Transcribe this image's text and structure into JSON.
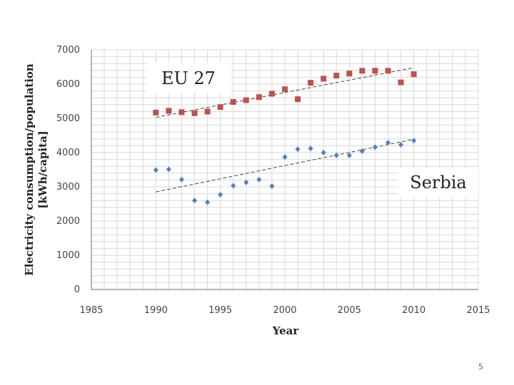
{
  "chart_data": {
    "type": "scatter",
    "title": "",
    "xlabel": "Year",
    "ylabel_line1": "Electricity consumption/population",
    "ylabel_line2": "[kWh/capita]",
    "xlim": [
      1985,
      2015
    ],
    "ylim": [
      0,
      7000
    ],
    "x_ticks": [
      1985,
      1990,
      1995,
      2000,
      2005,
      2010,
      2015
    ],
    "y_ticks": [
      0,
      1000,
      2000,
      3000,
      4000,
      5000,
      6000,
      7000
    ],
    "x_minor_step": 1,
    "y_minor_step": 200,
    "grid": true,
    "series": [
      {
        "name": "EU 27",
        "marker": "square",
        "color": "#c0504d",
        "x": [
          1990,
          1991,
          1992,
          1993,
          1994,
          1995,
          1996,
          1997,
          1998,
          1999,
          2000,
          2001,
          2002,
          2003,
          2004,
          2005,
          2006,
          2007,
          2008,
          2009,
          2010
        ],
        "y": [
          5170,
          5220,
          5180,
          5150,
          5200,
          5330,
          5480,
          5530,
          5620,
          5720,
          5850,
          5560,
          6040,
          6160,
          6250,
          6310,
          6390,
          6390,
          6390,
          6050,
          6290
        ],
        "trendline": {
          "x": [
            1990,
            2010
          ],
          "y": [
            5030,
            6480
          ]
        }
      },
      {
        "name": "Serbia",
        "marker": "diamond",
        "color": "#4f81bd",
        "x": [
          1990,
          1991,
          1992,
          1993,
          1994,
          1995,
          1996,
          1997,
          1998,
          1999,
          2000,
          2001,
          2002,
          2003,
          2004,
          2005,
          2006,
          2007,
          2008,
          2009,
          2010
        ],
        "y": [
          3490,
          3510,
          3210,
          2600,
          2550,
          2770,
          3030,
          3130,
          3210,
          3020,
          3870,
          4100,
          4120,
          4000,
          3920,
          3920,
          4040,
          4160,
          4290,
          4230,
          4350
        ],
        "trendline": {
          "x": [
            1990,
            2010
          ],
          "y": [
            2850,
            4390
          ]
        }
      }
    ],
    "annotations": [
      "EU 27",
      "Serbia"
    ]
  },
  "callouts": {
    "eu_label": "EU 27",
    "serbia_label": "Serbia"
  },
  "slide": {
    "page_number": "5"
  },
  "colors": {
    "grid": "#d9d9d9",
    "axis": "#868686"
  }
}
